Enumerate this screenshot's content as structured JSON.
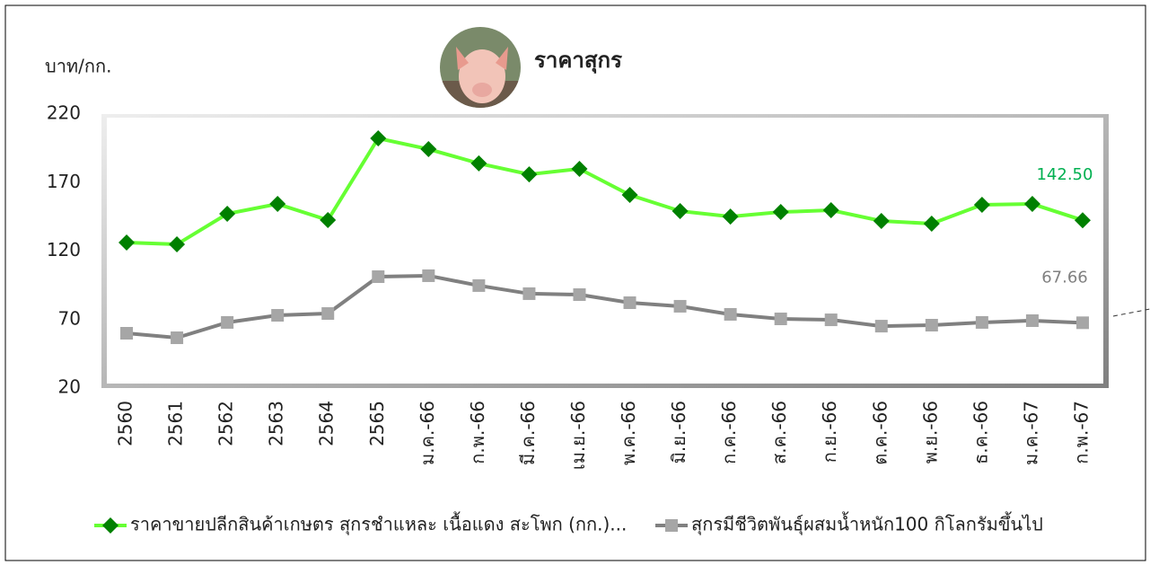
{
  "chart_data": {
    "type": "line",
    "title": "ราคาสุกร",
    "y_label": "บาท/กก.",
    "categories": [
      "2560",
      "2561",
      "2562",
      "2563",
      "2564",
      "2565",
      "ม.ค.-66",
      "ก.พ.-66",
      "มี.ค.-66",
      "เม.ย.-66",
      "พ.ค.-66",
      "มิ.ย.-66",
      "ก.ค.-66",
      "ส.ค.-66",
      "ก.ย.-66",
      "ต.ค.-66",
      "พ.ย.-66",
      "ธ.ค.-66",
      "ม.ค.-67",
      "ก.พ.-67"
    ],
    "series": [
      {
        "name": "ราคาขายปลีกสินค้าเกษตร สุกรชำแหละ เนื้อแดง สะโพก (กก.)...",
        "color": "#66ff33",
        "marker_color": "#008000",
        "marker": "diamond",
        "values": [
          126.2,
          124.9,
          147.2,
          154.4,
          142.6,
          202.3,
          194.4,
          184,
          176,
          180,
          161,
          149.2,
          145.2,
          148.5,
          149.8,
          142,
          140,
          153.8,
          154.4,
          142.5
        ],
        "value_labels": [
          null,
          null,
          null,
          null,
          null,
          null,
          null,
          null,
          null,
          null,
          null,
          null,
          null,
          null,
          null,
          null,
          null,
          null,
          null,
          "142.50"
        ],
        "label_color": "#00b050"
      },
      {
        "name": "สุกรมีชีวิตพันธุ์ผสมน้ำหนัก100 กิโลกรัมขึ้นไป",
        "color": "#808080",
        "marker_color": "#a6a6a6",
        "marker": "square",
        "values": [
          60,
          56.7,
          67.9,
          73.1,
          74.4,
          101.3,
          102,
          94.8,
          88.9,
          88.2,
          82.3,
          79.7,
          73.8,
          70.5,
          69.8,
          65.2,
          65.9,
          67.9,
          69.2,
          67.66
        ],
        "value_labels": [
          null,
          null,
          null,
          null,
          null,
          null,
          null,
          null,
          null,
          null,
          null,
          null,
          null,
          null,
          null,
          null,
          null,
          null,
          null,
          "67.66"
        ],
        "label_color": "#808080"
      }
    ],
    "ylim": [
      20,
      220
    ],
    "yticks": [
      20,
      70,
      120,
      170,
      220
    ],
    "grid": false,
    "legend": "bottom"
  }
}
